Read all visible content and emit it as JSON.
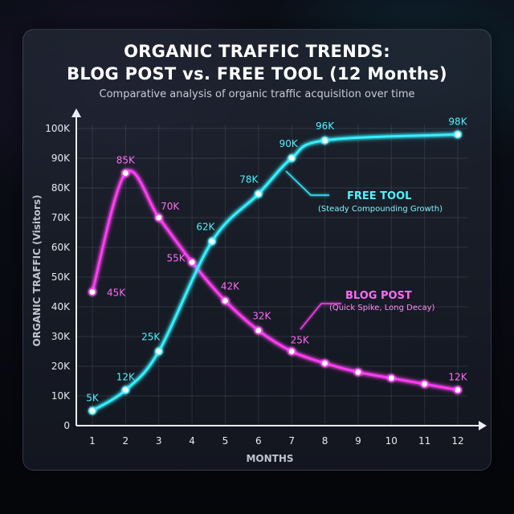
{
  "title_line1": "ORGANIC TRAFFIC TRENDS:",
  "title_line2": "BLOG POST vs. FREE TOOL (12 Months)",
  "subtitle": "Comparative analysis of organic traffic acquisition over time",
  "colors": {
    "blog": "#ff3ef2",
    "tool": "#35f0ff",
    "blog_label": "#ff6af4",
    "tool_label": "#4ef4ff"
  },
  "chart_data": {
    "type": "line",
    "xlabel": "MONTHS",
    "ylabel": "ORGANIC TRAFFIC (Visitors)",
    "x": [
      1,
      2,
      3,
      4,
      5,
      6,
      7,
      8,
      9,
      10,
      11,
      12
    ],
    "xlim": [
      0.5,
      12.5
    ],
    "ylim": [
      0,
      100000
    ],
    "yticks": [
      0,
      10000,
      20000,
      30000,
      40000,
      50000,
      60000,
      70000,
      80000,
      90000,
      100000
    ],
    "ytick_labels": [
      "0",
      "10K",
      "20K",
      "30K",
      "40K",
      "50K",
      "60K",
      "70K",
      "80K",
      "90K",
      "100K"
    ],
    "grid": true,
    "series": [
      {
        "name": "BLOG POST",
        "note": "(Quick Spike, Long Decay)",
        "x": [
          1,
          2,
          3,
          4,
          5,
          6,
          7,
          8,
          9,
          10,
          11,
          12
        ],
        "values": [
          45000,
          85000,
          70000,
          55000,
          42000,
          32000,
          25000,
          21000,
          18000,
          16000,
          14000,
          12000
        ],
        "point_labels": [
          "45K",
          "85K",
          "70K",
          "55K",
          "42K",
          "32K",
          "25K",
          "",
          "",
          "",
          "",
          "12K"
        ]
      },
      {
        "name": "FREE TOOL",
        "note": "(Steady Compounding Growth)",
        "x": [
          1,
          2,
          3,
          4.6,
          6,
          7,
          8,
          12
        ],
        "values": [
          5000,
          12000,
          25000,
          62000,
          78000,
          90000,
          96000,
          98000
        ],
        "point_labels": [
          "5K",
          "12K",
          "25K",
          "62K",
          "78K",
          "90K",
          "96K",
          "98K"
        ]
      }
    ]
  }
}
